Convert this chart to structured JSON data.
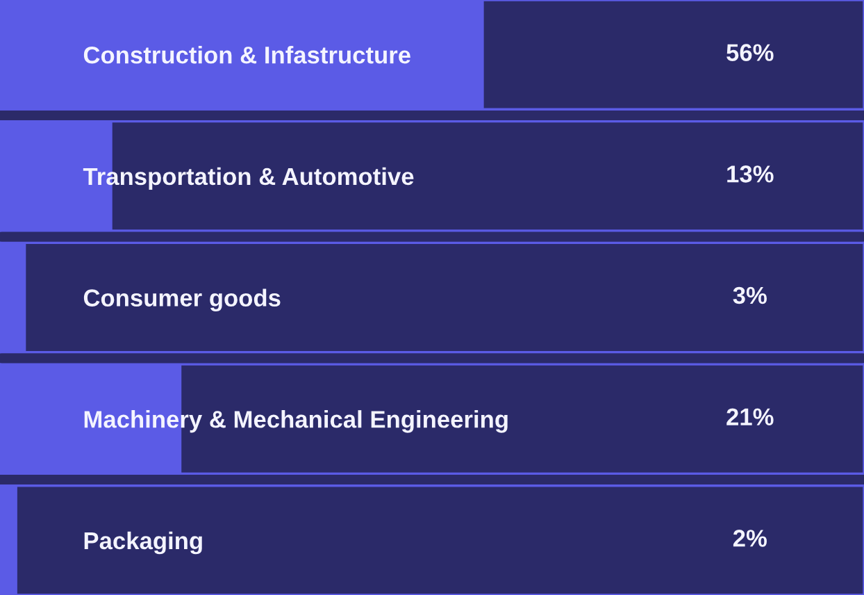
{
  "chart_data": {
    "type": "bar",
    "orientation": "horizontal",
    "categories": [
      "Construction & Infastructure",
      "Transportation & Automotive",
      "Consumer goods",
      "Machinery & Mechanical Engineering",
      "Packaging"
    ],
    "values": [
      56,
      13,
      3,
      21,
      2
    ],
    "value_labels": [
      "56%",
      "13%",
      "3%",
      "21%",
      "2%"
    ],
    "color": "#5b5be6",
    "xlim": [
      0,
      100
    ],
    "tick_labels": "y",
    "grid": false,
    "legend": false
  }
}
